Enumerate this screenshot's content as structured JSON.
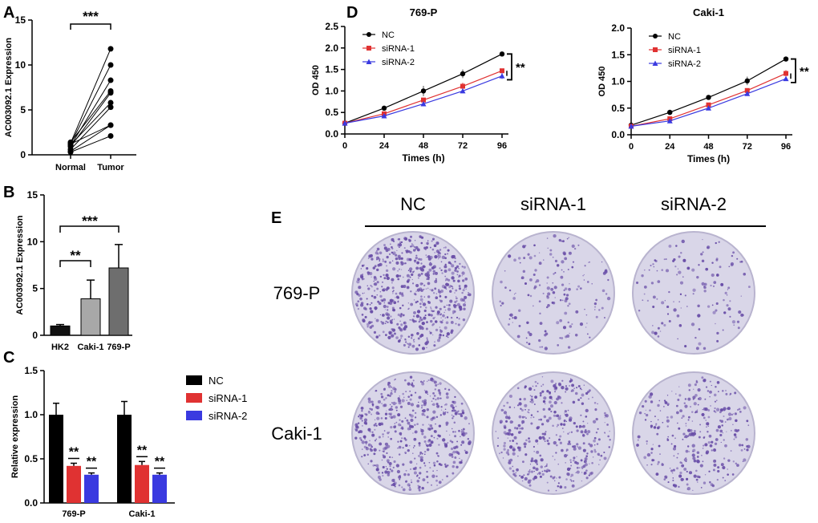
{
  "colors": {
    "nc": "#000000",
    "si1": "#e03232",
    "si2": "#3a3ae0",
    "barB": [
      "#111111",
      "#a8a8a8",
      "#6e6e6e"
    ],
    "plate": "#6a4fa8"
  },
  "panel_E": {
    "label": "E",
    "columns": [
      "NC",
      "siRNA-1",
      "siRNA-2"
    ],
    "rows": [
      "769-P",
      "Caki-1"
    ],
    "density": [
      [
        0.9,
        0.25,
        0.2
      ],
      [
        0.75,
        0.6,
        0.45
      ]
    ]
  },
  "chart_data": [
    {
      "id": "A",
      "panel_label": "A",
      "type": "scatter",
      "ylabel": "AC003092.1 Expression",
      "categories": [
        "Normal",
        "Tumor"
      ],
      "ylim": [
        0,
        15
      ],
      "yticks": [
        0,
        5,
        10,
        15
      ],
      "significance": "***",
      "pairs": [
        [
          1.3,
          11.8
        ],
        [
          1.2,
          10.0
        ],
        [
          1.0,
          8.3
        ],
        [
          1.4,
          7.1
        ],
        [
          0.9,
          6.9
        ],
        [
          1.1,
          5.8
        ],
        [
          0.6,
          5.3
        ],
        [
          0.4,
          3.3
        ],
        [
          1.2,
          3.3
        ],
        [
          0.3,
          2.1
        ]
      ]
    },
    {
      "id": "B",
      "panel_label": "B",
      "type": "bar",
      "ylabel": "AC003092.1 Expression",
      "categories": [
        "HK2",
        "Caki-1",
        "769-P"
      ],
      "values": [
        1.0,
        3.9,
        7.2
      ],
      "errors": [
        0.15,
        2.0,
        2.5
      ],
      "ylim": [
        0,
        15
      ],
      "yticks": [
        0,
        5,
        10,
        15
      ],
      "comparisons": [
        {
          "from": "HK2",
          "to": "Caki-1",
          "label": "**"
        },
        {
          "from": "HK2",
          "to": "769-P",
          "label": "***"
        }
      ]
    },
    {
      "id": "C",
      "panel_label": "C",
      "type": "bar",
      "ylabel": "Relative expression",
      "categories": [
        "769-P",
        "Caki-1"
      ],
      "ylim": [
        0,
        1.5
      ],
      "yticks": [
        "0.0",
        "0.5",
        "1.0",
        "1.5"
      ],
      "series": [
        {
          "name": "NC",
          "values": [
            1.0,
            1.0
          ],
          "errors": [
            0.13,
            0.15
          ]
        },
        {
          "name": "siRNA-1",
          "values": [
            0.42,
            0.43
          ],
          "errors": [
            0.03,
            0.04
          ],
          "sig": "**"
        },
        {
          "name": "siRNA-2",
          "values": [
            0.32,
            0.32
          ],
          "errors": [
            0.02,
            0.02
          ],
          "sig": "**"
        }
      ],
      "legend": "right"
    },
    {
      "id": "D1",
      "panel_label": "D",
      "type": "line",
      "title": "769-P",
      "xlabel": "Times (h)",
      "ylabel": "OD 450",
      "x": [
        0,
        24,
        48,
        72,
        96
      ],
      "ylim": [
        0,
        2.5
      ],
      "yticks": [
        "0.0",
        "0.5",
        "1.0",
        "1.5",
        "2.0",
        "2.5"
      ],
      "significance": "**",
      "legend": "top-left",
      "series": [
        {
          "name": "NC",
          "values": [
            0.25,
            0.6,
            1.0,
            1.4,
            1.86
          ],
          "errors": [
            0.03,
            0.05,
            0.12,
            0.1,
            0.05
          ]
        },
        {
          "name": "siRNA-1",
          "values": [
            0.25,
            0.47,
            0.79,
            1.11,
            1.47
          ],
          "errors": [
            0.02,
            0.03,
            0.04,
            0.08,
            0.03
          ]
        },
        {
          "name": "siRNA-2",
          "values": [
            0.25,
            0.42,
            0.7,
            1.0,
            1.35
          ],
          "errors": [
            0.02,
            0.03,
            0.03,
            0.05,
            0.07
          ]
        }
      ]
    },
    {
      "id": "D2",
      "panel_label": "",
      "type": "line",
      "title": "Caki-1",
      "xlabel": "Times (h)",
      "ylabel": "OD 450",
      "x": [
        0,
        24,
        48,
        72,
        96
      ],
      "ylim": [
        0,
        2.0
      ],
      "yticks": [
        "0.0",
        "0.5",
        "1.0",
        "1.5",
        "2.0"
      ],
      "significance": "**",
      "legend": "top-left",
      "series": [
        {
          "name": "NC",
          "values": [
            0.18,
            0.42,
            0.7,
            1.01,
            1.42
          ],
          "errors": [
            0.02,
            0.05,
            0.02,
            0.08,
            0.04
          ]
        },
        {
          "name": "siRNA-1",
          "values": [
            0.16,
            0.3,
            0.56,
            0.83,
            1.15
          ],
          "errors": [
            0.02,
            0.03,
            0.03,
            0.03,
            0.06
          ]
        },
        {
          "name": "siRNA-2",
          "values": [
            0.16,
            0.26,
            0.5,
            0.77,
            1.05
          ],
          "errors": [
            0.02,
            0.02,
            0.02,
            0.02,
            0.03
          ]
        }
      ]
    }
  ]
}
